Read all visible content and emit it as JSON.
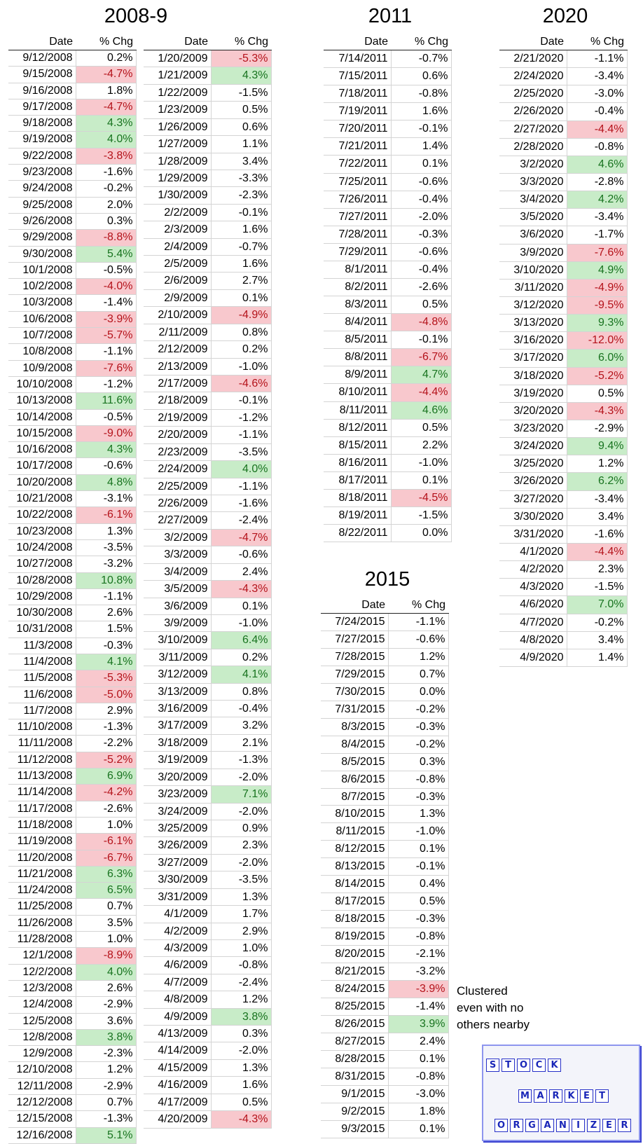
{
  "titles": {
    "t2008": "2008-9",
    "t2011": "2011",
    "t2015": "2015",
    "t2020": "2020"
  },
  "headers": {
    "date": "Date",
    "chg": "% Chg"
  },
  "tables": {
    "a2008": {
      "dates": [
        "9/12/2008",
        "9/15/2008",
        "9/16/2008",
        "9/17/2008",
        "9/18/2008",
        "9/19/2008",
        "9/22/2008",
        "9/23/2008",
        "9/24/2008",
        "9/25/2008",
        "9/26/2008",
        "9/29/2008",
        "9/30/2008",
        "10/1/2008",
        "10/2/2008",
        "10/3/2008",
        "10/6/2008",
        "10/7/2008",
        "10/8/2008",
        "10/9/2008",
        "10/10/2008",
        "10/13/2008",
        "10/14/2008",
        "10/15/2008",
        "10/16/2008",
        "10/17/2008",
        "10/20/2008",
        "10/21/2008",
        "10/22/2008",
        "10/23/2008",
        "10/24/2008",
        "10/27/2008",
        "10/28/2008",
        "10/29/2008",
        "10/30/2008",
        "10/31/2008",
        "11/3/2008",
        "11/4/2008",
        "11/5/2008",
        "11/6/2008",
        "11/7/2008",
        "11/10/2008",
        "11/11/2008",
        "11/12/2008",
        "11/13/2008",
        "11/14/2008",
        "11/17/2008",
        "11/18/2008",
        "11/19/2008",
        "11/20/2008",
        "11/21/2008",
        "11/24/2008",
        "11/25/2008",
        "11/26/2008",
        "11/28/2008",
        "12/1/2008",
        "12/2/2008",
        "12/3/2008",
        "12/4/2008",
        "12/5/2008",
        "12/8/2008",
        "12/9/2008",
        "12/10/2008",
        "12/11/2008",
        "12/12/2008",
        "12/15/2008",
        "12/16/2008"
      ],
      "values": [
        "0.2%",
        "-4.7%",
        "1.8%",
        "-4.7%",
        "4.3%",
        "4.0%",
        "-3.8%",
        "-1.6%",
        "-0.2%",
        "2.0%",
        "0.3%",
        "-8.8%",
        "5.4%",
        "-0.5%",
        "-4.0%",
        "-1.4%",
        "-3.9%",
        "-5.7%",
        "-1.1%",
        "-7.6%",
        "-1.2%",
        "11.6%",
        "-0.5%",
        "-9.0%",
        "4.3%",
        "-0.6%",
        "4.8%",
        "-3.1%",
        "-6.1%",
        "1.3%",
        "-3.5%",
        "-3.2%",
        "10.8%",
        "-1.1%",
        "2.6%",
        "1.5%",
        "-0.3%",
        "4.1%",
        "-5.3%",
        "-5.0%",
        "2.9%",
        "-1.3%",
        "-2.2%",
        "-5.2%",
        "6.9%",
        "-4.2%",
        "-2.6%",
        "1.0%",
        "-6.1%",
        "-6.7%",
        "6.3%",
        "6.5%",
        "0.7%",
        "3.5%",
        "1.0%",
        "-8.9%",
        "4.0%",
        "2.6%",
        "-2.9%",
        "3.6%",
        "3.8%",
        "-2.3%",
        "1.2%",
        "-2.9%",
        "0.7%",
        "-1.3%",
        "5.1%"
      ]
    },
    "a2009": {
      "dates": [
        "1/20/2009",
        "1/21/2009",
        "1/22/2009",
        "1/23/2009",
        "1/26/2009",
        "1/27/2009",
        "1/28/2009",
        "1/29/2009",
        "1/30/2009",
        "2/2/2009",
        "2/3/2009",
        "2/4/2009",
        "2/5/2009",
        "2/6/2009",
        "2/9/2009",
        "2/10/2009",
        "2/11/2009",
        "2/12/2009",
        "2/13/2009",
        "2/17/2009",
        "2/18/2009",
        "2/19/2009",
        "2/20/2009",
        "2/23/2009",
        "2/24/2009",
        "2/25/2009",
        "2/26/2009",
        "2/27/2009",
        "3/2/2009",
        "3/3/2009",
        "3/4/2009",
        "3/5/2009",
        "3/6/2009",
        "3/9/2009",
        "3/10/2009",
        "3/11/2009",
        "3/12/2009",
        "3/13/2009",
        "3/16/2009",
        "3/17/2009",
        "3/18/2009",
        "3/19/2009",
        "3/20/2009",
        "3/23/2009",
        "3/24/2009",
        "3/25/2009",
        "3/26/2009",
        "3/27/2009",
        "3/30/2009",
        "3/31/2009",
        "4/1/2009",
        "4/2/2009",
        "4/3/2009",
        "4/6/2009",
        "4/7/2009",
        "4/8/2009",
        "4/9/2009",
        "4/13/2009",
        "4/14/2009",
        "4/15/2009",
        "4/16/2009",
        "4/17/2009",
        "4/20/2009"
      ],
      "values": [
        "-5.3%",
        "4.3%",
        "-1.5%",
        "0.5%",
        "0.6%",
        "1.1%",
        "3.4%",
        "-3.3%",
        "-2.3%",
        "-0.1%",
        "1.6%",
        "-0.7%",
        "1.6%",
        "2.7%",
        "0.1%",
        "-4.9%",
        "0.8%",
        "0.2%",
        "-1.0%",
        "-4.6%",
        "-0.1%",
        "-1.2%",
        "-1.1%",
        "-3.5%",
        "4.0%",
        "-1.1%",
        "-1.6%",
        "-2.4%",
        "-4.7%",
        "-0.6%",
        "2.4%",
        "-4.3%",
        "0.1%",
        "-1.0%",
        "6.4%",
        "0.2%",
        "4.1%",
        "0.8%",
        "-0.4%",
        "3.2%",
        "2.1%",
        "-1.3%",
        "-2.0%",
        "7.1%",
        "-2.0%",
        "0.9%",
        "2.3%",
        "-2.0%",
        "-3.5%",
        "1.3%",
        "1.7%",
        "2.9%",
        "1.0%",
        "-0.8%",
        "-2.4%",
        "1.2%",
        "3.8%",
        "0.3%",
        "-2.0%",
        "1.3%",
        "1.6%",
        "0.5%",
        "-4.3%"
      ]
    },
    "a2011": {
      "dates": [
        "7/14/2011",
        "7/15/2011",
        "7/18/2011",
        "7/19/2011",
        "7/20/2011",
        "7/21/2011",
        "7/22/2011",
        "7/25/2011",
        "7/26/2011",
        "7/27/2011",
        "7/28/2011",
        "7/29/2011",
        "8/1/2011",
        "8/2/2011",
        "8/3/2011",
        "8/4/2011",
        "8/5/2011",
        "8/8/2011",
        "8/9/2011",
        "8/10/2011",
        "8/11/2011",
        "8/12/2011",
        "8/15/2011",
        "8/16/2011",
        "8/17/2011",
        "8/18/2011",
        "8/19/2011",
        "8/22/2011"
      ],
      "values": [
        "-0.7%",
        "0.6%",
        "-0.8%",
        "1.6%",
        "-0.1%",
        "1.4%",
        "0.1%",
        "-0.6%",
        "-0.4%",
        "-2.0%",
        "-0.3%",
        "-0.6%",
        "-0.4%",
        "-2.6%",
        "0.5%",
        "-4.8%",
        "-0.1%",
        "-6.7%",
        "4.7%",
        "-4.4%",
        "4.6%",
        "0.5%",
        "2.2%",
        "-1.0%",
        "0.1%",
        "-4.5%",
        "-1.5%",
        "0.0%"
      ]
    },
    "a2015": {
      "dates": [
        "7/24/2015",
        "7/27/2015",
        "7/28/2015",
        "7/29/2015",
        "7/30/2015",
        "7/31/2015",
        "8/3/2015",
        "8/4/2015",
        "8/5/2015",
        "8/6/2015",
        "8/7/2015",
        "8/10/2015",
        "8/11/2015",
        "8/12/2015",
        "8/13/2015",
        "8/14/2015",
        "8/17/2015",
        "8/18/2015",
        "8/19/2015",
        "8/20/2015",
        "8/21/2015",
        "8/24/2015",
        "8/25/2015",
        "8/26/2015",
        "8/27/2015",
        "8/28/2015",
        "8/31/2015",
        "9/1/2015",
        "9/2/2015",
        "9/3/2015"
      ],
      "values": [
        "-1.1%",
        "-0.6%",
        "1.2%",
        "0.7%",
        "0.0%",
        "-0.2%",
        "-0.3%",
        "-0.2%",
        "0.3%",
        "-0.8%",
        "-0.3%",
        "1.3%",
        "-1.0%",
        "0.1%",
        "-0.1%",
        "0.4%",
        "0.5%",
        "-0.3%",
        "-0.8%",
        "-2.1%",
        "-3.2%",
        "-3.9%",
        "-1.4%",
        "3.9%",
        "2.4%",
        "0.1%",
        "-0.8%",
        "-3.0%",
        "1.8%",
        "0.1%"
      ]
    },
    "a2020": {
      "dates": [
        "2/21/2020",
        "2/24/2020",
        "2/25/2020",
        "2/26/2020",
        "2/27/2020",
        "2/28/2020",
        "3/2/2020",
        "3/3/2020",
        "3/4/2020",
        "3/5/2020",
        "3/6/2020",
        "3/9/2020",
        "3/10/2020",
        "3/11/2020",
        "3/12/2020",
        "3/13/2020",
        "3/16/2020",
        "3/17/2020",
        "3/18/2020",
        "3/19/2020",
        "3/20/2020",
        "3/23/2020",
        "3/24/2020",
        "3/25/2020",
        "3/26/2020",
        "3/27/2020",
        "3/30/2020",
        "3/31/2020",
        "4/1/2020",
        "4/2/2020",
        "4/3/2020",
        "4/6/2020",
        "4/7/2020",
        "4/8/2020",
        "4/9/2020"
      ],
      "values": [
        "-1.1%",
        "-3.4%",
        "-3.0%",
        "-0.4%",
        "-4.4%",
        "-0.8%",
        "4.6%",
        "-2.8%",
        "4.2%",
        "-3.4%",
        "-1.7%",
        "-7.6%",
        "4.9%",
        "-4.9%",
        "-9.5%",
        "9.3%",
        "-12.0%",
        "6.0%",
        "-5.2%",
        "0.5%",
        "-4.3%",
        "-2.9%",
        "9.4%",
        "1.2%",
        "6.2%",
        "-3.4%",
        "3.4%",
        "-1.6%",
        "-4.4%",
        "2.3%",
        "-1.5%",
        "7.0%",
        "-0.2%",
        "3.4%",
        "1.4%"
      ]
    }
  },
  "note": [
    "Clustered",
    "even with no",
    "others nearby"
  ],
  "logo": {
    "rows": [
      [
        "S",
        "T",
        "O",
        "C",
        "K"
      ],
      [
        "M",
        "A",
        "R",
        "K",
        "E",
        "T"
      ],
      [
        "O",
        "R",
        "G",
        "A",
        "N",
        "I",
        "Z",
        "E",
        "R"
      ]
    ]
  },
  "colors": {
    "neg_bg": "#f8c8cd",
    "neg_text": "#b4121a",
    "pos_bg": "#c8ecc8",
    "pos_text": "#18731f"
  }
}
